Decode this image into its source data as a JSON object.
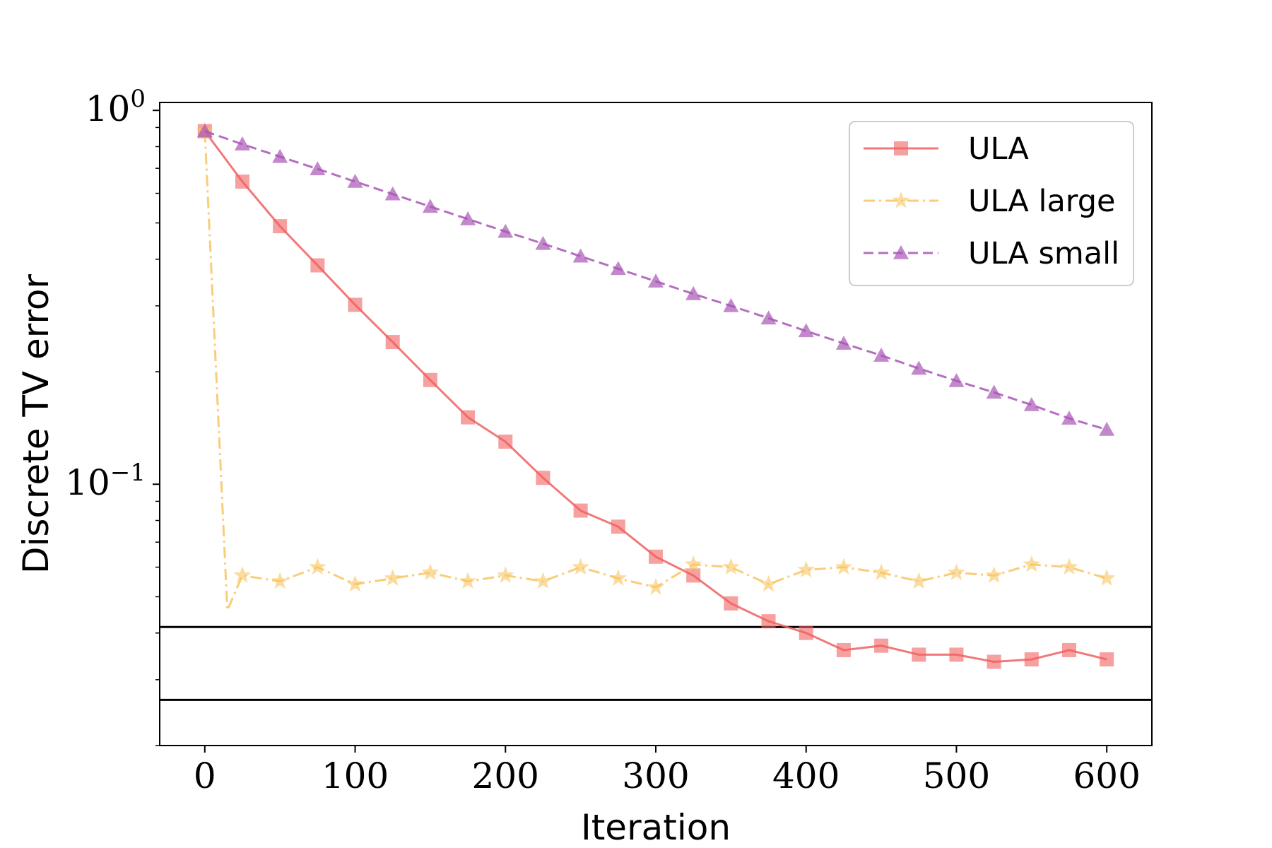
{
  "chart_data": {
    "type": "line",
    "title": "",
    "xlabel": "Iteration",
    "ylabel": "Discrete TV error",
    "xlim": [
      -30,
      630
    ],
    "ylim": [
      0.02,
      1.05
    ],
    "yscale": "log",
    "xticks": [
      0,
      100,
      200,
      300,
      400,
      500,
      600
    ],
    "yticks": [
      {
        "value": 1,
        "base": "10",
        "exp": "0"
      },
      {
        "value": 0.1,
        "base": "10",
        "exp": "−1"
      }
    ],
    "grid": false,
    "legend": "top-right",
    "hlines": [
      0.0415,
      0.0265
    ],
    "series": [
      {
        "name": "ULA",
        "color": "#f06060",
        "marker": "square",
        "linestyle": "solid",
        "x": [
          0,
          25,
          50,
          75,
          100,
          125,
          150,
          175,
          200,
          225,
          250,
          275,
          300,
          325,
          350,
          375,
          400,
          425,
          450,
          475,
          500,
          525,
          550,
          575,
          600
        ],
        "y": [
          0.88,
          0.645,
          0.49,
          0.385,
          0.302,
          0.24,
          0.19,
          0.151,
          0.13,
          0.104,
          0.085,
          0.077,
          0.064,
          0.057,
          0.048,
          0.043,
          0.04,
          0.036,
          0.037,
          0.035,
          0.035,
          0.0335,
          0.034,
          0.036,
          0.034
        ]
      },
      {
        "name": "ULA large",
        "color": "#f8c460",
        "marker": "star",
        "linestyle": "dashdot",
        "x": [
          0,
          15,
          25,
          50,
          75,
          100,
          125,
          150,
          175,
          200,
          225,
          250,
          275,
          300,
          325,
          350,
          375,
          400,
          425,
          450,
          475,
          500,
          525,
          550,
          575,
          600
        ],
        "y": [
          0.88,
          0.046,
          0.057,
          0.055,
          0.06,
          0.054,
          0.056,
          0.058,
          0.055,
          0.057,
          0.055,
          0.06,
          0.056,
          0.053,
          0.061,
          0.06,
          0.054,
          0.059,
          0.06,
          0.058,
          0.055,
          0.058,
          0.057,
          0.061,
          0.06,
          0.056
        ]
      },
      {
        "name": "ULA small",
        "color": "#a855b5",
        "marker": "triangle",
        "linestyle": "dashed",
        "x": [
          0,
          25,
          50,
          75,
          100,
          125,
          150,
          175,
          200,
          225,
          250,
          275,
          300,
          325,
          350,
          375,
          400,
          425,
          450,
          475,
          500,
          525,
          550,
          575,
          600
        ],
        "y": [
          0.88,
          0.812,
          0.752,
          0.697,
          0.645,
          0.597,
          0.553,
          0.512,
          0.474,
          0.44,
          0.407,
          0.377,
          0.349,
          0.323,
          0.3,
          0.278,
          0.257,
          0.238,
          0.221,
          0.204,
          0.189,
          0.176,
          0.163,
          0.15,
          0.14
        ]
      }
    ]
  }
}
